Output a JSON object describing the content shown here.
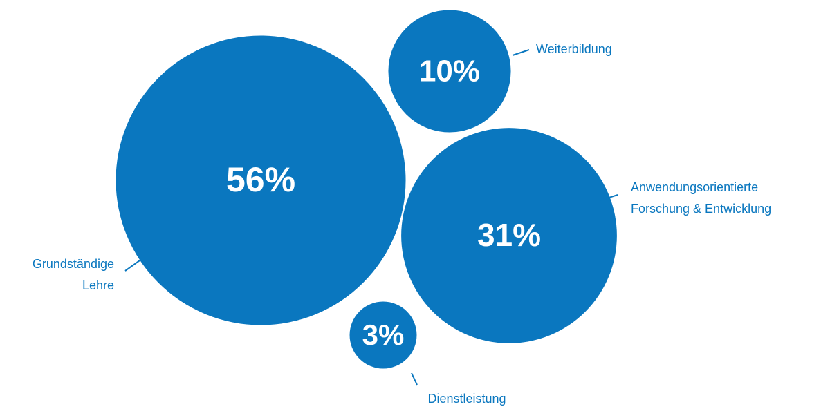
{
  "chart_data": {
    "type": "bubble",
    "categories": [
      [
        "Grundständige",
        "Lehre"
      ],
      [
        "Weiterbildung"
      ],
      [
        "Anwendungsorientierte",
        "Forschung & Entwicklung"
      ],
      [
        "Dienstleistung"
      ]
    ],
    "values": [
      56,
      10,
      31,
      3
    ],
    "value_labels": [
      "56%",
      "10%",
      "31%",
      "3%"
    ],
    "color": "#0a77bf"
  }
}
